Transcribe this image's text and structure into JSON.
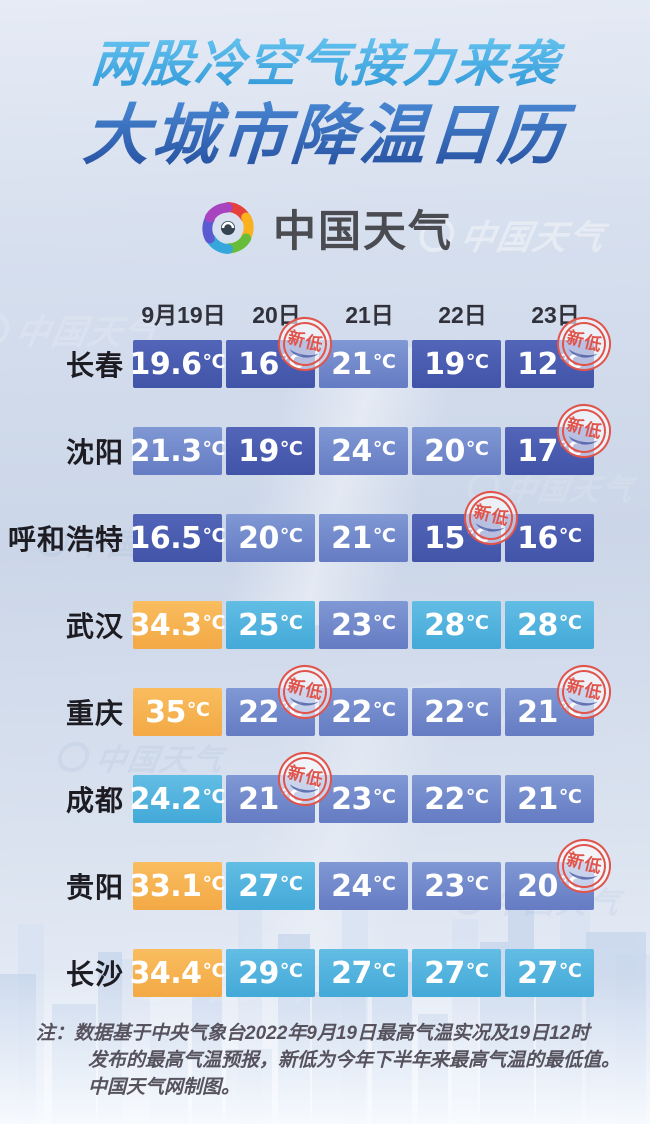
{
  "header": {
    "title_line1": "两股冷空气接力来袭",
    "title_line2": "大城市降温日历",
    "brand": "中国天气"
  },
  "watermark_text": "中国天气",
  "colors": {
    "title1": "#3fa3dd",
    "title2": "#2e63b5",
    "stamp_red": "#e0544b",
    "palette": {
      "orange": {
        "top": "#f9bd5f",
        "bottom": "#f3a945"
      },
      "cyan": {
        "top": "#63bde4",
        "bottom": "#43a9d8"
      },
      "slate": {
        "top": "#8098d4",
        "bottom": "#657bc3"
      },
      "dark": {
        "top": "#5365b8",
        "bottom": "#4254a8"
      }
    }
  },
  "table": {
    "unit": "℃",
    "stamp_label": "新低",
    "dates": [
      "9月19日",
      "20日",
      "21日",
      "22日",
      "23日"
    ],
    "rows": [
      {
        "city": "长春",
        "cells": [
          {
            "t": "19.6",
            "band": "dark"
          },
          {
            "t": "16",
            "band": "dark",
            "new_low": true
          },
          {
            "t": "21",
            "band": "slate"
          },
          {
            "t": "19",
            "band": "dark"
          },
          {
            "t": "12",
            "band": "dark",
            "new_low": true
          }
        ]
      },
      {
        "city": "沈阳",
        "cells": [
          {
            "t": "21.3",
            "band": "slate"
          },
          {
            "t": "19",
            "band": "dark"
          },
          {
            "t": "24",
            "band": "slate"
          },
          {
            "t": "20",
            "band": "slate"
          },
          {
            "t": "17",
            "band": "dark",
            "new_low": true
          }
        ]
      },
      {
        "city": "呼和浩特",
        "cells": [
          {
            "t": "16.5",
            "band": "dark"
          },
          {
            "t": "20",
            "band": "slate"
          },
          {
            "t": "21",
            "band": "slate"
          },
          {
            "t": "15",
            "band": "dark",
            "new_low": true
          },
          {
            "t": "16",
            "band": "dark"
          }
        ]
      },
      {
        "city": "武汉",
        "cells": [
          {
            "t": "34.3",
            "band": "orange"
          },
          {
            "t": "25",
            "band": "cyan"
          },
          {
            "t": "23",
            "band": "slate"
          },
          {
            "t": "28",
            "band": "cyan"
          },
          {
            "t": "28",
            "band": "cyan"
          }
        ]
      },
      {
        "city": "重庆",
        "cells": [
          {
            "t": "35",
            "band": "orange"
          },
          {
            "t": "22",
            "band": "slate",
            "new_low": true
          },
          {
            "t": "22",
            "band": "slate"
          },
          {
            "t": "22",
            "band": "slate"
          },
          {
            "t": "21",
            "band": "slate",
            "new_low": true
          }
        ]
      },
      {
        "city": "成都",
        "cells": [
          {
            "t": "24.2",
            "band": "cyan"
          },
          {
            "t": "21",
            "band": "slate",
            "new_low": true
          },
          {
            "t": "23",
            "band": "slate"
          },
          {
            "t": "22",
            "band": "slate"
          },
          {
            "t": "21",
            "band": "slate"
          }
        ]
      },
      {
        "city": "贵阳",
        "cells": [
          {
            "t": "33.1",
            "band": "orange"
          },
          {
            "t": "27",
            "band": "cyan"
          },
          {
            "t": "24",
            "band": "slate"
          },
          {
            "t": "23",
            "band": "slate"
          },
          {
            "t": "20",
            "band": "slate",
            "new_low": true
          }
        ]
      },
      {
        "city": "长沙",
        "cells": [
          {
            "t": "34.4",
            "band": "orange"
          },
          {
            "t": "29",
            "band": "cyan"
          },
          {
            "t": "27",
            "band": "cyan"
          },
          {
            "t": "27",
            "band": "cyan"
          },
          {
            "t": "27",
            "band": "cyan"
          }
        ]
      }
    ]
  },
  "footnote": {
    "text": "注：数据基于中央气象台2022年9月19日最高气温实况及19日12时\n发布的最高气温预报，新低为今年下半年来最高气温的最低值。\n中国天气网制图。"
  }
}
